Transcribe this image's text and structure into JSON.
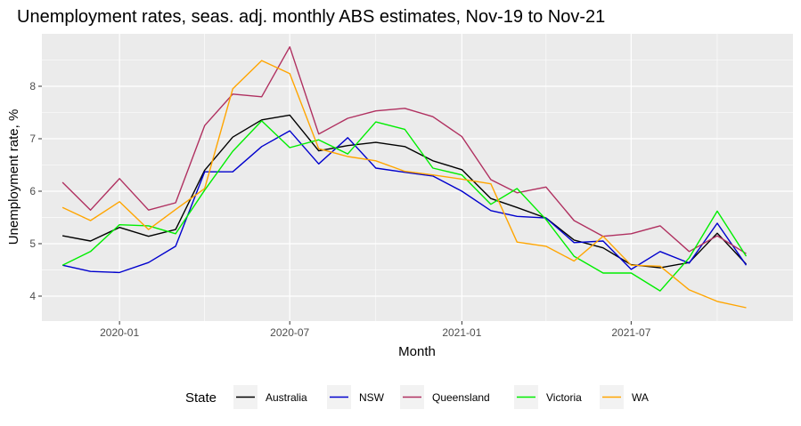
{
  "chart_data": {
    "type": "line",
    "title": "Unemployment rates, seas. adj. monthly ABS estimates, Nov-19 to Nov-21",
    "xlabel": "Month",
    "ylabel": "Unemployment rate, %",
    "x": [
      "2019-11",
      "2019-12",
      "2020-01",
      "2020-02",
      "2020-03",
      "2020-04",
      "2020-05",
      "2020-06",
      "2020-07",
      "2020-08",
      "2020-09",
      "2020-10",
      "2020-11",
      "2020-12",
      "2021-01",
      "2021-02",
      "2021-03",
      "2021-04",
      "2021-05",
      "2021-06",
      "2021-07",
      "2021-08",
      "2021-09",
      "2021-10",
      "2021-11"
    ],
    "x_ticks": [
      {
        "date": "2020-01-01",
        "label": "2020-01"
      },
      {
        "date": "2020-07-01",
        "label": "2020-07"
      },
      {
        "date": "2021-01-01",
        "label": "2021-01"
      },
      {
        "date": "2021-07-01",
        "label": "2021-07"
      }
    ],
    "x_minor_grid": [
      "2019-10-01",
      "2020-04-01",
      "2020-10-01",
      "2021-04-01",
      "2021-10-01"
    ],
    "y_ticks": [
      4,
      5,
      6,
      7,
      8
    ],
    "y_tick_labels": [
      "4",
      "5",
      "6",
      "7",
      "8"
    ],
    "y_minor_grid": [
      3.5,
      4.5,
      5.5,
      6.5,
      7.5,
      8.5
    ],
    "ylim": [
      3.525,
      9.0
    ],
    "xlim": [
      "2019-10-10",
      "2021-12-21"
    ],
    "grid": true,
    "legend": {
      "title": "State",
      "position": "bottom"
    },
    "series": [
      {
        "name": "Australia",
        "color": "#000000",
        "values": [
          5.15,
          5.05,
          5.31,
          5.14,
          5.27,
          6.4,
          7.03,
          7.36,
          7.45,
          6.77,
          6.87,
          6.93,
          6.85,
          6.58,
          6.41,
          5.86,
          5.69,
          5.49,
          5.07,
          4.92,
          4.6,
          4.54,
          4.64,
          5.2,
          4.61
        ]
      },
      {
        "name": "NSW",
        "color": "#0000cd",
        "values": [
          4.59,
          4.47,
          4.45,
          4.64,
          4.95,
          6.37,
          6.37,
          6.85,
          7.15,
          6.52,
          7.02,
          6.44,
          6.36,
          6.29,
          6.0,
          5.63,
          5.52,
          5.49,
          5.02,
          5.05,
          4.51,
          4.85,
          4.63,
          5.39,
          4.59
        ]
      },
      {
        "name": "Queensland",
        "color": "#b03060",
        "values": [
          6.17,
          5.64,
          6.24,
          5.64,
          5.78,
          7.25,
          7.85,
          7.8,
          8.75,
          7.09,
          7.39,
          7.53,
          7.58,
          7.42,
          7.04,
          6.22,
          5.97,
          6.08,
          5.44,
          5.14,
          5.19,
          5.34,
          4.85,
          5.15,
          4.81
        ]
      },
      {
        "name": "Victoria",
        "color": "#00ee00",
        "values": [
          4.59,
          4.85,
          5.36,
          5.34,
          5.19,
          6.02,
          6.76,
          7.34,
          6.83,
          6.98,
          6.71,
          7.32,
          7.18,
          6.44,
          6.31,
          5.75,
          6.05,
          5.46,
          4.76,
          4.44,
          4.44,
          4.1,
          4.73,
          5.62,
          4.76
        ]
      },
      {
        "name": "WA",
        "color": "#ffa500",
        "values": [
          5.69,
          5.44,
          5.8,
          5.27,
          5.65,
          6.05,
          7.95,
          8.49,
          8.24,
          6.81,
          6.66,
          6.58,
          6.38,
          6.31,
          6.23,
          6.14,
          5.03,
          4.95,
          4.67,
          5.14,
          4.59,
          4.57,
          4.12,
          3.9,
          3.78
        ]
      }
    ]
  }
}
